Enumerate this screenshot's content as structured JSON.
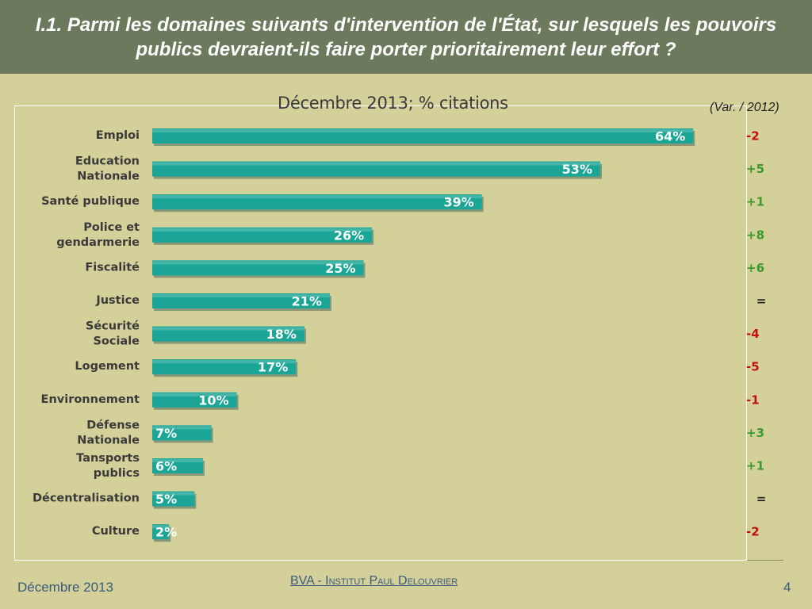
{
  "header": {
    "title": "I.1. Parmi les domaines suivants d'intervention de l'État, sur lesquels les pouvoirs publics devraient-ils faire porter prioritairement leur effort ?"
  },
  "chart_data": {
    "type": "bar",
    "orientation": "horizontal",
    "title": "Décembre 2013; % citations",
    "variation_header": "(Var. / 2012)",
    "categories": [
      "Emploi",
      "Education Nationale",
      "Santé publique",
      "Police et gendarmerie",
      "Fiscalité",
      "Justice",
      "Sécurité Sociale",
      "Logement",
      "Environnement",
      "Défense Nationale",
      "Tansports publics",
      "Décentralisation",
      "Culture"
    ],
    "category_lines": [
      [
        "Emploi"
      ],
      [
        "Education",
        "Nationale"
      ],
      [
        "Santé publique"
      ],
      [
        "Police et",
        "gendarmerie"
      ],
      [
        "Fiscalité"
      ],
      [
        "Justice"
      ],
      [
        "Sécurité",
        "Sociale"
      ],
      [
        "Logement"
      ],
      [
        "Environnement"
      ],
      [
        "Défense",
        "Nationale"
      ],
      [
        "Tansports",
        "publics"
      ],
      [
        "Décentralisation"
      ],
      [
        "Culture"
      ]
    ],
    "values": [
      64,
      53,
      39,
      26,
      25,
      21,
      18,
      17,
      10,
      7,
      6,
      5,
      2
    ],
    "value_labels": [
      "64%",
      "53%",
      "39%",
      "26%",
      "25%",
      "21%",
      "18%",
      "17%",
      "10%",
      "7%",
      "6%",
      "5%",
      "2%"
    ],
    "variations": [
      "-2",
      "+5",
      "+1",
      "+8",
      "+6",
      "=",
      "-4",
      "-5",
      "-1",
      "+3",
      "+1",
      "=",
      "-2"
    ],
    "xlim": [
      0,
      100
    ],
    "grid": false,
    "colors": {
      "bar": "#1aa596",
      "bar_shadow": "#4f6a5c",
      "value_label": "#ffffff",
      "positive": "#3a9a2a",
      "negative": "#c01010",
      "neutral": "#222222",
      "category_label": "#3a3a3a"
    }
  },
  "footer": {
    "date": "Décembre 2013",
    "org": "BVA - Institut Paul Delouvrier",
    "page": "4"
  }
}
